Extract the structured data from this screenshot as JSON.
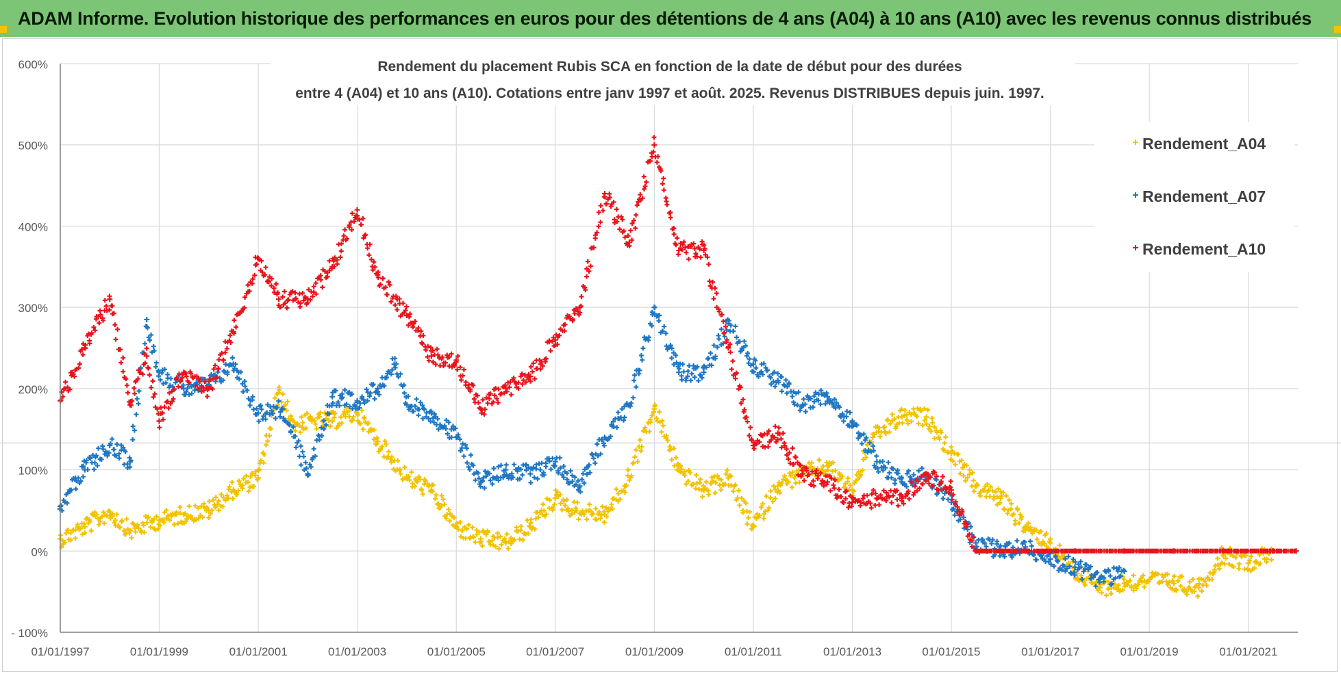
{
  "banner": {
    "title": "ADAM Informe. Evolution historique des performances en euros pour des détentions de 4 ans (A04) à 10 ans (A10) avec les revenus connus distribués"
  },
  "colors": {
    "banner_bg": "#7cc576",
    "grid": "#d9d9d9",
    "axis": "#7f7f7f"
  },
  "chart_data": {
    "type": "scatter",
    "title": [
      "Rendement du placement Rubis SCA en fonction de la date de début pour des durées",
      "entre 4 (A04) et 10 ans (A10).  Cotations entre janv 1997 et août. 2025. Revenus DISTRIBUES depuis juin. 1997."
    ],
    "xlabel": "",
    "ylabel": "",
    "xlim": [
      "1997-01-01",
      "2022-01-01"
    ],
    "ylim": [
      -100,
      600
    ],
    "x_ticks": [
      "01/01/1997",
      "01/01/1999",
      "01/01/2001",
      "01/01/2003",
      "01/01/2005",
      "01/01/2007",
      "01/01/2009",
      "01/01/2011",
      "01/01/2013",
      "01/01/2015",
      "01/01/2017",
      "01/01/2019",
      "01/01/2021"
    ],
    "y_ticks": [
      "- 100%",
      "0%",
      "100%",
      "200%",
      "300%",
      "400%",
      "500%",
      "600%"
    ],
    "y_tick_values": [
      -100,
      0,
      100,
      200,
      300,
      400,
      500,
      600
    ],
    "grid": true,
    "legend_position": "top-right",
    "marker": "+",
    "series": [
      {
        "name": "Rendement_A04",
        "color": "#f2c200",
        "points": [
          [
            "1997-01-01",
            15
          ],
          [
            "1997-07-01",
            30
          ],
          [
            "1998-01-01",
            48
          ],
          [
            "1998-06-01",
            25
          ],
          [
            "1999-01-01",
            38
          ],
          [
            "1999-07-01",
            45
          ],
          [
            "2000-01-01",
            50
          ],
          [
            "2000-07-01",
            75
          ],
          [
            "2001-01-01",
            90
          ],
          [
            "2001-06-01",
            195
          ],
          [
            "2001-10-01",
            155
          ],
          [
            "2002-02-01",
            160
          ],
          [
            "2002-07-01",
            160
          ],
          [
            "2003-01-01",
            170
          ],
          [
            "2003-06-01",
            135
          ],
          [
            "2004-01-01",
            90
          ],
          [
            "2004-07-01",
            75
          ],
          [
            "2005-01-01",
            30
          ],
          [
            "2005-07-01",
            15
          ],
          [
            "2006-01-01",
            10
          ],
          [
            "2006-07-01",
            30
          ],
          [
            "2007-01-01",
            65
          ],
          [
            "2007-06-01",
            50
          ],
          [
            "2008-01-01",
            45
          ],
          [
            "2008-06-01",
            80
          ],
          [
            "2009-01-01",
            175
          ],
          [
            "2009-07-01",
            100
          ],
          [
            "2010-01-01",
            75
          ],
          [
            "2010-07-01",
            90
          ],
          [
            "2011-01-01",
            30
          ],
          [
            "2011-07-01",
            80
          ],
          [
            "2012-01-01",
            95
          ],
          [
            "2012-07-01",
            105
          ],
          [
            "2013-01-01",
            75
          ],
          [
            "2013-06-01",
            140
          ],
          [
            "2014-01-01",
            165
          ],
          [
            "2014-07-01",
            165
          ],
          [
            "2015-01-01",
            120
          ],
          [
            "2015-07-01",
            80
          ],
          [
            "2016-01-01",
            65
          ],
          [
            "2016-07-01",
            30
          ],
          [
            "2017-01-01",
            10
          ],
          [
            "2017-07-01",
            -25
          ],
          [
            "2018-01-01",
            -45
          ],
          [
            "2018-07-01",
            -40
          ],
          [
            "2019-01-01",
            -35
          ],
          [
            "2019-07-01",
            -40
          ],
          [
            "2020-01-01",
            -45
          ],
          [
            "2020-07-01",
            -5
          ],
          [
            "2021-01-01",
            -15
          ],
          [
            "2021-07-01",
            0
          ]
        ]
      },
      {
        "name": "Rendement_A07",
        "color": "#1f77c4",
        "points": [
          [
            "1997-01-01",
            55
          ],
          [
            "1997-07-01",
            100
          ],
          [
            "1998-01-01",
            130
          ],
          [
            "1998-06-01",
            110
          ],
          [
            "1998-10-01",
            285
          ],
          [
            "1999-01-01",
            220
          ],
          [
            "1999-07-01",
            200
          ],
          [
            "2000-01-01",
            205
          ],
          [
            "2000-07-01",
            230
          ],
          [
            "2001-01-01",
            170
          ],
          [
            "2001-07-01",
            175
          ],
          [
            "2002-01-01",
            95
          ],
          [
            "2002-07-01",
            190
          ],
          [
            "2003-01-01",
            185
          ],
          [
            "2003-06-01",
            200
          ],
          [
            "2003-10-01",
            230
          ],
          [
            "2004-01-01",
            180
          ],
          [
            "2004-07-01",
            170
          ],
          [
            "2005-01-01",
            140
          ],
          [
            "2005-07-01",
            85
          ],
          [
            "2006-01-01",
            100
          ],
          [
            "2006-07-01",
            95
          ],
          [
            "2007-01-01",
            110
          ],
          [
            "2007-07-01",
            80
          ],
          [
            "2008-01-01",
            140
          ],
          [
            "2008-07-01",
            180
          ],
          [
            "2009-01-01",
            300
          ],
          [
            "2009-07-01",
            220
          ],
          [
            "2010-01-01",
            220
          ],
          [
            "2010-07-01",
            280
          ],
          [
            "2011-01-01",
            230
          ],
          [
            "2011-07-01",
            210
          ],
          [
            "2012-01-01",
            180
          ],
          [
            "2012-07-01",
            190
          ],
          [
            "2013-01-01",
            160
          ],
          [
            "2013-07-01",
            110
          ],
          [
            "2014-01-01",
            85
          ],
          [
            "2014-07-01",
            95
          ],
          [
            "2015-01-01",
            60
          ],
          [
            "2015-07-01",
            10
          ],
          [
            "2016-01-01",
            0
          ],
          [
            "2016-07-01",
            5
          ],
          [
            "2017-01-01",
            -10
          ],
          [
            "2017-07-01",
            -20
          ],
          [
            "2018-01-01",
            -35
          ],
          [
            "2018-07-01",
            -25
          ]
        ]
      },
      {
        "name": "Rendement_A10",
        "color": "#e8141c",
        "points": [
          [
            "1997-01-01",
            185
          ],
          [
            "1997-07-01",
            250
          ],
          [
            "1998-01-01",
            310
          ],
          [
            "1998-06-01",
            180
          ],
          [
            "1998-10-01",
            240
          ],
          [
            "1999-01-01",
            160
          ],
          [
            "1999-07-01",
            220
          ],
          [
            "2000-01-01",
            200
          ],
          [
            "2000-07-01",
            270
          ],
          [
            "2001-01-01",
            360
          ],
          [
            "2001-06-01",
            310
          ],
          [
            "2002-01-01",
            310
          ],
          [
            "2002-07-01",
            350
          ],
          [
            "2003-01-01",
            420
          ],
          [
            "2003-06-01",
            340
          ],
          [
            "2004-01-01",
            290
          ],
          [
            "2004-07-01",
            240
          ],
          [
            "2005-01-01",
            235
          ],
          [
            "2005-07-01",
            175
          ],
          [
            "2006-01-01",
            200
          ],
          [
            "2006-07-01",
            215
          ],
          [
            "2007-01-01",
            260
          ],
          [
            "2007-07-01",
            300
          ],
          [
            "2008-01-01",
            440
          ],
          [
            "2008-07-01",
            380
          ],
          [
            "2009-01-01",
            500
          ],
          [
            "2009-07-01",
            370
          ],
          [
            "2010-01-01",
            370
          ],
          [
            "2010-07-01",
            250
          ],
          [
            "2011-01-01",
            130
          ],
          [
            "2011-07-01",
            145
          ],
          [
            "2012-01-01",
            95
          ],
          [
            "2012-07-01",
            85
          ],
          [
            "2013-01-01",
            60
          ],
          [
            "2013-07-01",
            65
          ],
          [
            "2014-01-01",
            65
          ],
          [
            "2014-07-01",
            95
          ],
          [
            "2015-01-01",
            75
          ],
          [
            "2015-07-01",
            0
          ],
          [
            "2016-07-01",
            0
          ],
          [
            "2017-07-01",
            0
          ],
          [
            "2018-07-01",
            0
          ],
          [
            "2019-07-01",
            0
          ],
          [
            "2020-07-01",
            0
          ],
          [
            "2021-07-01",
            0
          ],
          [
            "2021-12-20",
            0
          ]
        ]
      }
    ]
  }
}
